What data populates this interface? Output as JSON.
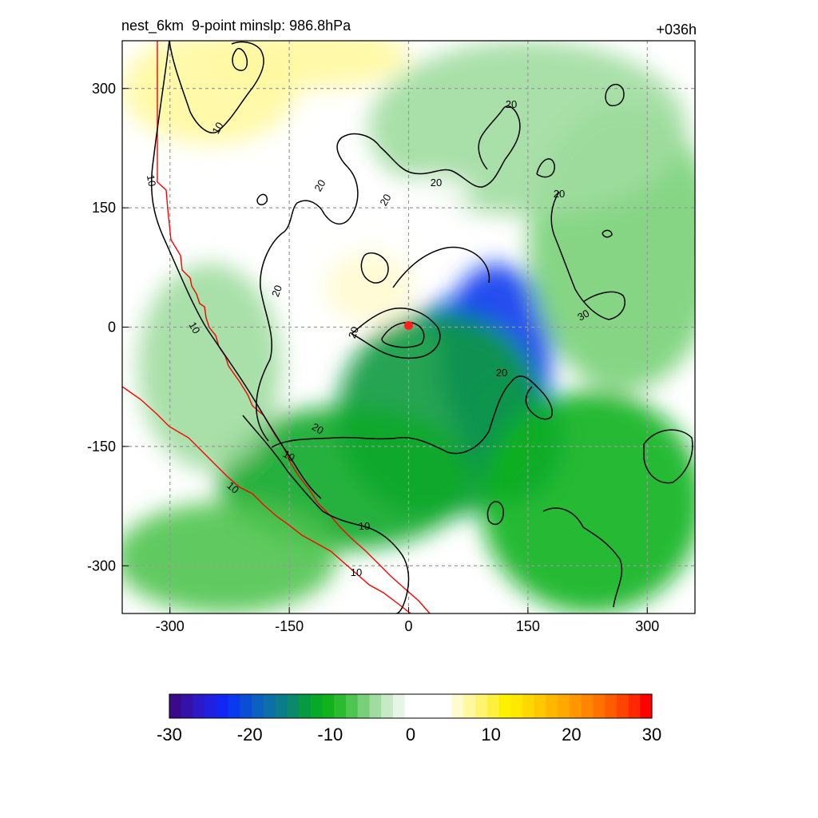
{
  "title_left": "nest_6km  9-point minslp: 986.8hPa",
  "title_right": "+036h",
  "chart_data": {
    "type": "heatmap",
    "description_units": "km offset from storm center",
    "xlim": [
      -360,
      360
    ],
    "ylim": [
      -360,
      360
    ],
    "x_ticks": [
      -300,
      -150,
      0,
      150,
      300
    ],
    "y_ticks": [
      300,
      150,
      0,
      -150,
      -300
    ],
    "x_tick_labels": [
      "-300",
      "-150",
      "0",
      "150",
      "300"
    ],
    "y_tick_labels": [
      "300",
      "150",
      "0",
      "-150",
      "-300"
    ],
    "grid": true,
    "storm_center": {
      "x": 0,
      "y": 2,
      "color": "#ff2020"
    },
    "colorbar": {
      "min": -30,
      "max": 30,
      "tick_values": [
        -30,
        -20,
        -10,
        0,
        10,
        20,
        30
      ],
      "tick_labels": [
        "-30",
        "-20",
        "-10",
        "0",
        "10",
        "20",
        "30"
      ],
      "colors": [
        "#3a0a8a",
        "#3412a8",
        "#2a1ac8",
        "#1f20e0",
        "#1028f4",
        "#0a3aee",
        "#0b4ed6",
        "#0c60c0",
        "#0c6fa8",
        "#0b7c8a",
        "#0a8a6a",
        "#089a40",
        "#08a828",
        "#12b21c",
        "#2cba30",
        "#50c450",
        "#78d078",
        "#a0dca0",
        "#c6eac6",
        "#e6f6e6",
        "#ffffff",
        "#ffffff",
        "#ffffff",
        "#ffffff",
        "#fffbd0",
        "#fff8a0",
        "#fff470",
        "#fff040",
        "#fff000",
        "#ffe800",
        "#ffd800",
        "#ffc800",
        "#ffb800",
        "#ffa800",
        "#ff9800",
        "#ff8600",
        "#ff7200",
        "#ff5c00",
        "#ff4400",
        "#ff2800",
        "#ff0000"
      ]
    },
    "contour_labels": [
      "10",
      "10",
      "10",
      "10",
      "10",
      "10",
      "10",
      "20",
      "20",
      "20",
      "20",
      "20",
      "20",
      "20",
      "20",
      "20",
      "30"
    ],
    "field_blobs": [
      {
        "x": 110,
        "y": -40,
        "rx": 70,
        "ry": 120,
        "value": -22
      },
      {
        "x": 60,
        "y": 10,
        "rx": 45,
        "ry": 25,
        "value": -22
      },
      {
        "x": 130,
        "y": -140,
        "rx": 65,
        "ry": 80,
        "value": -20
      },
      {
        "x": 40,
        "y": -110,
        "rx": 130,
        "ry": 130,
        "value": -14
      },
      {
        "x": -80,
        "y": -190,
        "rx": 160,
        "ry": 90,
        "value": -12
      },
      {
        "x": 230,
        "y": -220,
        "rx": 140,
        "ry": 140,
        "value": -11
      },
      {
        "x": -230,
        "y": -290,
        "rx": 140,
        "ry": 70,
        "value": -8
      },
      {
        "x": 270,
        "y": 100,
        "rx": 120,
        "ry": 180,
        "value": -6
      },
      {
        "x": 150,
        "y": 250,
        "rx": 200,
        "ry": 110,
        "value": -4
      },
      {
        "x": -250,
        "y": -50,
        "rx": 90,
        "ry": 130,
        "value": -4
      },
      {
        "x": -250,
        "y": 300,
        "rx": 110,
        "ry": 70,
        "value": 7
      },
      {
        "x": -120,
        "y": 340,
        "rx": 120,
        "ry": 40,
        "value": 7
      },
      {
        "x": -50,
        "y": 50,
        "rx": 55,
        "ry": 45,
        "value": 6
      },
      {
        "x": 20,
        "y": 170,
        "rx": 60,
        "ry": 20,
        "value": 4
      },
      {
        "x": -170,
        "y": 140,
        "rx": 20,
        "ry": 30,
        "value": 4
      }
    ]
  }
}
